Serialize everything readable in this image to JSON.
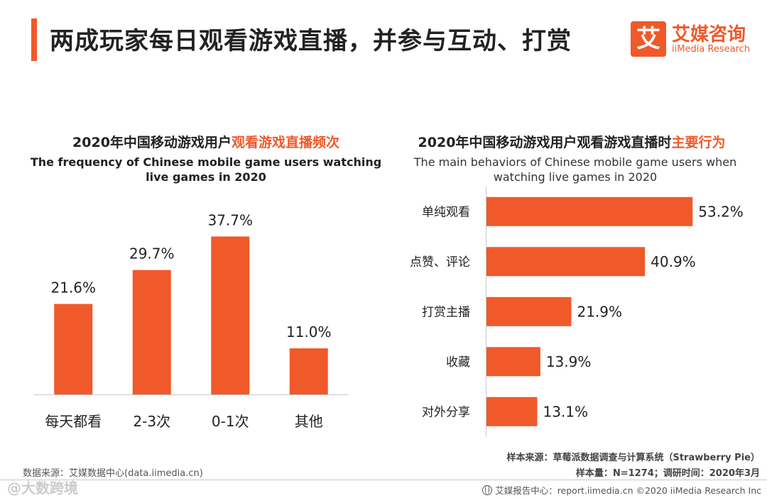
{
  "header": {
    "title": "两成玩家每日观看游戏直播，并参与互动、打赏"
  },
  "logo": {
    "mark": "艾",
    "name_cn": "艾媒咨询",
    "name_en": "iiMedia Research"
  },
  "colors": {
    "accent": "#f0592a",
    "axis": "#c8c8c8"
  },
  "left_chart": {
    "title_plain": "2020年中国移动游戏用户",
    "title_highlight": "观看游戏直播频次",
    "subtitle_line1": "The frequency of Chinese mobile game users watching",
    "subtitle_line2": "live games in 2020"
  },
  "right_chart": {
    "title_plain": "2020年中国移动游戏用户观看游戏直播时",
    "title_highlight": "主要行为",
    "subtitle_line1": "The main behaviors of Chinese mobile game users when",
    "subtitle_line2": "watching live games in 2020"
  },
  "chart_data": [
    {
      "type": "bar",
      "title": "2020年中国移动游戏用户观看游戏直播频次",
      "subtitle": "The frequency of Chinese mobile game users watching live games in 2020",
      "categories": [
        "每天都看",
        "2-3次",
        "0-1次",
        "其他"
      ],
      "values": [
        21.6,
        29.7,
        37.7,
        11.0
      ],
      "labels": [
        "21.6%",
        "29.7%",
        "37.7%",
        "11.0%"
      ],
      "unit": "%",
      "ylim": [
        0,
        42
      ],
      "grid": false
    },
    {
      "type": "bar",
      "orientation": "horizontal",
      "title": "2020年中国移动游戏用户观看游戏直播时主要行为",
      "subtitle": "The main behaviors of Chinese mobile game users when watching live games in 2020",
      "categories": [
        "单纯观看",
        "点赞、评论",
        "打赏主播",
        "收藏",
        "对外分享"
      ],
      "values": [
        53.2,
        40.9,
        21.9,
        13.9,
        13.1
      ],
      "labels": [
        "53.2%",
        "40.9%",
        "21.9%",
        "13.9%",
        "13.1%"
      ],
      "unit": "%",
      "xlim": [
        0,
        57
      ],
      "grid": false
    }
  ],
  "source": {
    "left": "数据来源：艾媒数据中心(data.iimedia.cn)",
    "right_line1": "样本来源：草莓派数据调查与计算系统（Strawberry Pie）",
    "right_line2": "样本量：N=1274；调研时间：2020年3月"
  },
  "footer": {
    "text": "艾媒报告中心：report.iimedia.cn ©2020 iiMedia Research Inc"
  },
  "watermark": {
    "text": "@大数跨境"
  }
}
